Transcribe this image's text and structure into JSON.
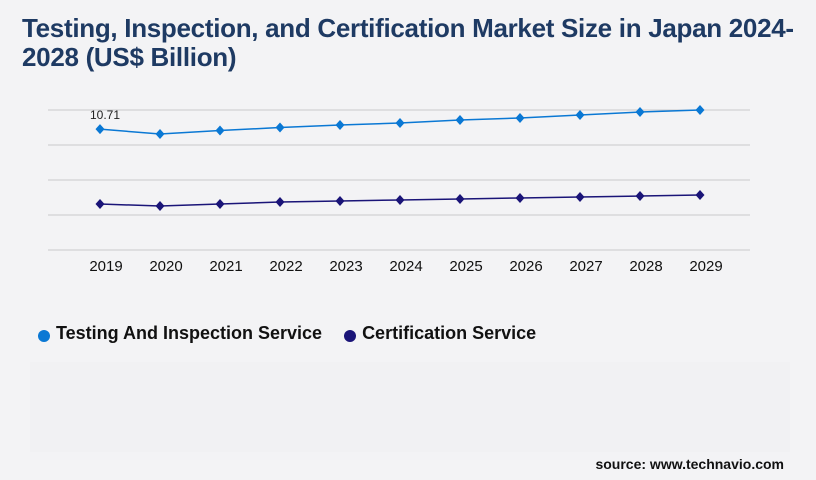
{
  "title": "Testing, Inspection, and Certification Market Size in Japan 2024-2028 (US$ Billion)",
  "source": "source: www.technavio.com",
  "chart_data": {
    "type": "line",
    "title": "Testing, Inspection, and Certification Market Size in Japan 2024-2028 (US$ Billion)",
    "xlabel": "",
    "ylabel": "",
    "x": [
      "2019",
      "2020",
      "2021",
      "2022",
      "2023",
      "2024",
      "2025",
      "2026",
      "2027",
      "2028",
      "2029"
    ],
    "ylim": [
      0,
      12.4
    ],
    "grid": true,
    "legend_position": "bottom-left",
    "series": [
      {
        "name": "Testing And Inspection Service",
        "color": "#0a78d4",
        "values": [
          10.71,
          10.27,
          10.58,
          10.85,
          11.07,
          11.25,
          11.51,
          11.69,
          11.96,
          12.22,
          12.4
        ]
      },
      {
        "name": "Certification Service",
        "color": "#1a1478",
        "values": [
          4.07,
          3.9,
          4.07,
          4.25,
          4.34,
          4.43,
          4.52,
          4.61,
          4.69,
          4.78,
          4.87
        ]
      }
    ],
    "annotations": [
      {
        "x": "2019",
        "series": 0,
        "text": "10.71"
      }
    ]
  }
}
